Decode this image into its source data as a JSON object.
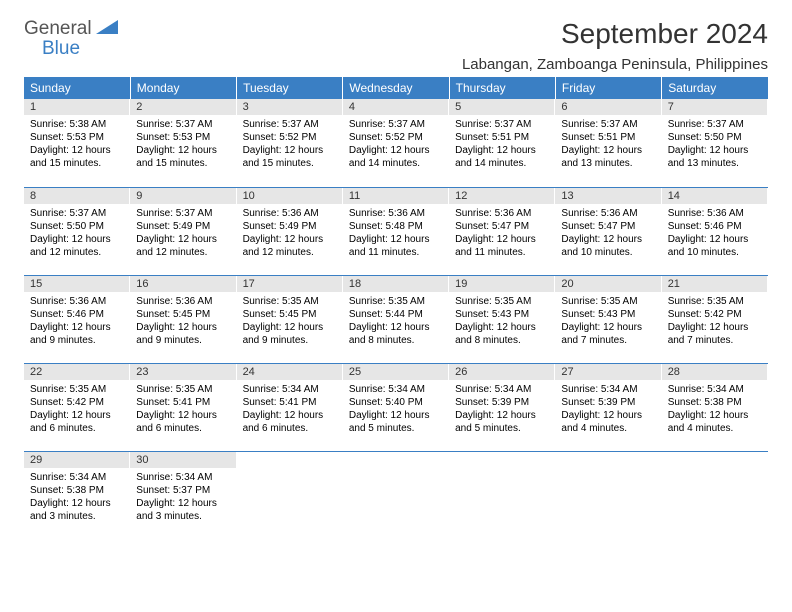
{
  "logo": {
    "general": "General",
    "blue": "Blue"
  },
  "title": "September 2024",
  "location": "Labangan, Zamboanga Peninsula, Philippines",
  "colors": {
    "header_bg": "#3a7fc4",
    "header_text": "#ffffff",
    "daynum_bg": "#e6e6e6",
    "border": "#3a7fc4",
    "page_bg": "#ffffff",
    "logo_gray": "#555555",
    "logo_blue": "#3a7fc4"
  },
  "weekdays": [
    "Sunday",
    "Monday",
    "Tuesday",
    "Wednesday",
    "Thursday",
    "Friday",
    "Saturday"
  ],
  "weeks": [
    [
      {
        "n": "1",
        "sr": "5:38 AM",
        "ss": "5:53 PM",
        "dl": "12 hours and 15 minutes."
      },
      {
        "n": "2",
        "sr": "5:37 AM",
        "ss": "5:53 PM",
        "dl": "12 hours and 15 minutes."
      },
      {
        "n": "3",
        "sr": "5:37 AM",
        "ss": "5:52 PM",
        "dl": "12 hours and 15 minutes."
      },
      {
        "n": "4",
        "sr": "5:37 AM",
        "ss": "5:52 PM",
        "dl": "12 hours and 14 minutes."
      },
      {
        "n": "5",
        "sr": "5:37 AM",
        "ss": "5:51 PM",
        "dl": "12 hours and 14 minutes."
      },
      {
        "n": "6",
        "sr": "5:37 AM",
        "ss": "5:51 PM",
        "dl": "12 hours and 13 minutes."
      },
      {
        "n": "7",
        "sr": "5:37 AM",
        "ss": "5:50 PM",
        "dl": "12 hours and 13 minutes."
      }
    ],
    [
      {
        "n": "8",
        "sr": "5:37 AM",
        "ss": "5:50 PM",
        "dl": "12 hours and 12 minutes."
      },
      {
        "n": "9",
        "sr": "5:37 AM",
        "ss": "5:49 PM",
        "dl": "12 hours and 12 minutes."
      },
      {
        "n": "10",
        "sr": "5:36 AM",
        "ss": "5:49 PM",
        "dl": "12 hours and 12 minutes."
      },
      {
        "n": "11",
        "sr": "5:36 AM",
        "ss": "5:48 PM",
        "dl": "12 hours and 11 minutes."
      },
      {
        "n": "12",
        "sr": "5:36 AM",
        "ss": "5:47 PM",
        "dl": "12 hours and 11 minutes."
      },
      {
        "n": "13",
        "sr": "5:36 AM",
        "ss": "5:47 PM",
        "dl": "12 hours and 10 minutes."
      },
      {
        "n": "14",
        "sr": "5:36 AM",
        "ss": "5:46 PM",
        "dl": "12 hours and 10 minutes."
      }
    ],
    [
      {
        "n": "15",
        "sr": "5:36 AM",
        "ss": "5:46 PM",
        "dl": "12 hours and 9 minutes."
      },
      {
        "n": "16",
        "sr": "5:36 AM",
        "ss": "5:45 PM",
        "dl": "12 hours and 9 minutes."
      },
      {
        "n": "17",
        "sr": "5:35 AM",
        "ss": "5:45 PM",
        "dl": "12 hours and 9 minutes."
      },
      {
        "n": "18",
        "sr": "5:35 AM",
        "ss": "5:44 PM",
        "dl": "12 hours and 8 minutes."
      },
      {
        "n": "19",
        "sr": "5:35 AM",
        "ss": "5:43 PM",
        "dl": "12 hours and 8 minutes."
      },
      {
        "n": "20",
        "sr": "5:35 AM",
        "ss": "5:43 PM",
        "dl": "12 hours and 7 minutes."
      },
      {
        "n": "21",
        "sr": "5:35 AM",
        "ss": "5:42 PM",
        "dl": "12 hours and 7 minutes."
      }
    ],
    [
      {
        "n": "22",
        "sr": "5:35 AM",
        "ss": "5:42 PM",
        "dl": "12 hours and 6 minutes."
      },
      {
        "n": "23",
        "sr": "5:35 AM",
        "ss": "5:41 PM",
        "dl": "12 hours and 6 minutes."
      },
      {
        "n": "24",
        "sr": "5:34 AM",
        "ss": "5:41 PM",
        "dl": "12 hours and 6 minutes."
      },
      {
        "n": "25",
        "sr": "5:34 AM",
        "ss": "5:40 PM",
        "dl": "12 hours and 5 minutes."
      },
      {
        "n": "26",
        "sr": "5:34 AM",
        "ss": "5:39 PM",
        "dl": "12 hours and 5 minutes."
      },
      {
        "n": "27",
        "sr": "5:34 AM",
        "ss": "5:39 PM",
        "dl": "12 hours and 4 minutes."
      },
      {
        "n": "28",
        "sr": "5:34 AM",
        "ss": "5:38 PM",
        "dl": "12 hours and 4 minutes."
      }
    ],
    [
      {
        "n": "29",
        "sr": "5:34 AM",
        "ss": "5:38 PM",
        "dl": "12 hours and 3 minutes."
      },
      {
        "n": "30",
        "sr": "5:34 AM",
        "ss": "5:37 PM",
        "dl": "12 hours and 3 minutes."
      },
      null,
      null,
      null,
      null,
      null
    ]
  ],
  "labels": {
    "sunrise": "Sunrise: ",
    "sunset": "Sunset: ",
    "daylight": "Daylight: "
  }
}
